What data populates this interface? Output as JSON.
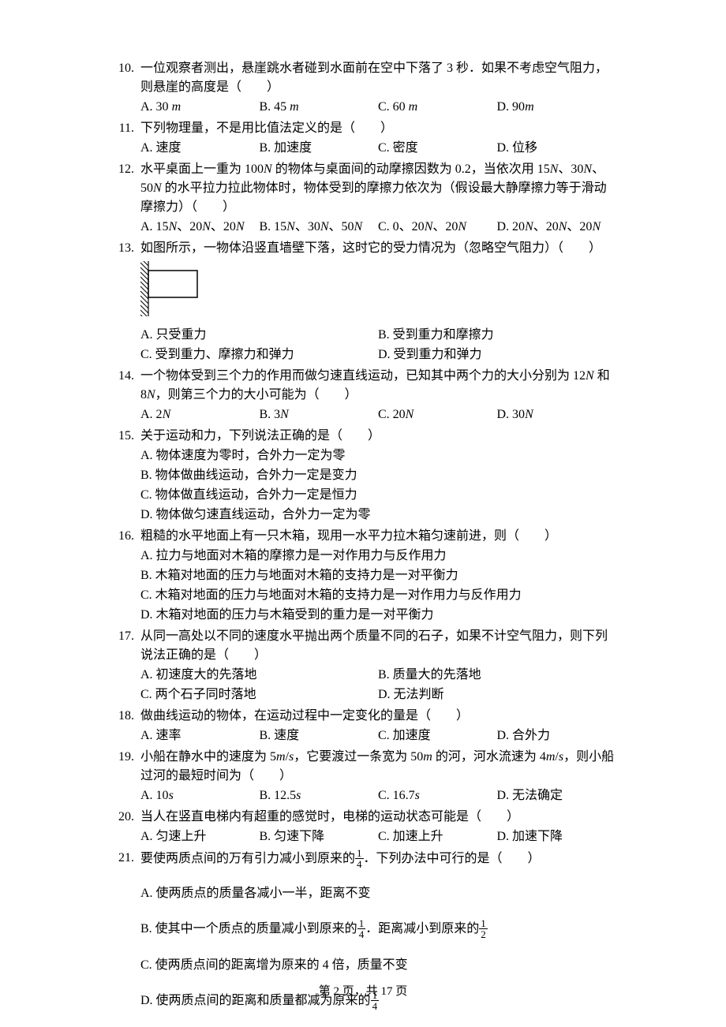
{
  "footer": {
    "prefix": "第",
    "page": "2",
    "sep": "页，共",
    "total": "17",
    "suffix": "页"
  },
  "questions": [
    {
      "num": "10.",
      "text": "一位观察者测出，悬崖跳水者碰到水面前在空中下落了 3 秒．如果不考虑空气阻力，则悬崖的高度是（　　）",
      "cols": 4,
      "opts": [
        "A. 30 <i>m</i>",
        "B. 45 <i>m</i>",
        "C. 60 <i>m</i>",
        "D. 90<i>m</i>"
      ]
    },
    {
      "num": "11.",
      "text": "下列物理量，不是用比值法定义的是（　　）",
      "cols": 4,
      "opts": [
        "A. 速度",
        "B. 加速度",
        "C. 密度",
        "D. 位移"
      ]
    },
    {
      "num": "12.",
      "text": "水平桌面上一重为 100<i>N</i> 的物体与桌面间的动摩擦因数为 0.2，当依次用 15<i>N</i>、30<i>N</i>、50<i>N</i> 的水平拉力拉此物体时，物体受到的摩擦力依次为（假设最大静摩擦力等于滑动摩擦力）（　　）",
      "cols": 4,
      "opts": [
        "A. 15<i>N</i>、20<i>N</i>、20<i>N</i>",
        "B. 15<i>N</i>、30<i>N</i>、50<i>N</i>",
        "C. 0、20<i>N</i>、20<i>N</i>",
        "D. 20<i>N</i>、20<i>N</i>、20<i>N</i>"
      ]
    },
    {
      "num": "13.",
      "text": "如图所示，一物体沿竖直墙壁下落，这时它的受力情况为（忽略空气阻力）（　　）",
      "diagram": true,
      "cols": 2,
      "opts": [
        "A. 只受重力",
        "B. 受到重力和摩擦力",
        "C. 受到重力、摩擦力和弹力",
        "D. 受到重力和弹力"
      ]
    },
    {
      "num": "14.",
      "text": "一个物体受到三个力的作用而做匀速直线运动，已知其中两个力的大小分别为 12<i>N</i> 和 8<i>N</i>，则第三个力的大小可能为（　　）",
      "cols": 4,
      "opts": [
        "A. 2<i>N</i>",
        "B. 3<i>N</i>",
        "C. 20<i>N</i>",
        "D. 30<i>N</i>"
      ]
    },
    {
      "num": "15.",
      "text": "关于运动和力，下列说法正确的是（　　）",
      "cols": 1,
      "opts": [
        "A. 物体速度为零时，合外力一定为零",
        "B. 物体做曲线运动，合外力一定是变力",
        "C. 物体做直线运动，合外力一定是恒力",
        "D. 物体做匀速直线运动，合外力一定为零"
      ]
    },
    {
      "num": "16.",
      "text": "粗糙的水平地面上有一只木箱，现用一水平力拉木箱匀速前进，则（　　）",
      "cols": 1,
      "opts": [
        "A. 拉力与地面对木箱的摩擦力是一对作用力与反作用力",
        "B. 木箱对地面的压力与地面对木箱的支持力是一对平衡力",
        "C. 木箱对地面的压力与地面对木箱的支持力是一对作用力与反作用力",
        "D. 木箱对地面的压力与木箱受到的重力是一对平衡力"
      ]
    },
    {
      "num": "17.",
      "text": "从同一高处以不同的速度水平抛出两个质量不同的石子，如果不计空气阻力，则下列说法正确的是（　　）",
      "cols": 2,
      "opts": [
        "A. 初速度大的先落地",
        "B. 质量大的先落地",
        "C. 两个石子同时落地",
        "D. 无法判断"
      ]
    },
    {
      "num": "18.",
      "text": "做曲线运动的物体，在运动过程中一定变化的量是（　　）",
      "cols": 4,
      "opts": [
        "A. 速率",
        "B. 速度",
        "C. 加速度",
        "D. 合外力"
      ]
    },
    {
      "num": "19.",
      "text": "小船在静水中的速度为 5<i>m</i>/<i>s</i>，它要渡过一条宽为 50<i>m</i> 的河，河水流速为 4<i>m</i>/<i>s</i>，则小船过河的最短时间为（　　）",
      "cols": 4,
      "opts": [
        "A. 10<i>s</i>",
        "B. 12.5<i>s</i>",
        "C. 16.7<i>s</i>",
        "D. 无法确定"
      ]
    },
    {
      "num": "20.",
      "text": "当人在竖直电梯内有超重的感觉时，电梯的运动状态可能是（　　）",
      "cols": 4,
      "opts": [
        "A. 匀速上升",
        "B. 匀速下降",
        "C. 加速上升",
        "D. 加速下降"
      ]
    },
    {
      "num": "21.",
      "text": "要使两质点间的万有引力减小到原来的<frac>1|4</frac>．下列办法中可行的是（　　）",
      "cols": 1,
      "opts": [
        "A. 使两质点的质量各减小一半，距离不变",
        "B. 使其中一个质点的质量减小到原来的<frac>1|4</frac>．距离减小到原来的<frac>1|2</frac>",
        "C. 使两质点间的距离增为原来的 4 倍，质量不变",
        "D. 使两质点间的距离和质量都减为原来的<frac>1|4</frac>"
      ]
    }
  ],
  "diagram13": {
    "wall_hatch_color": "#000000",
    "block_stroke": "#000000"
  }
}
